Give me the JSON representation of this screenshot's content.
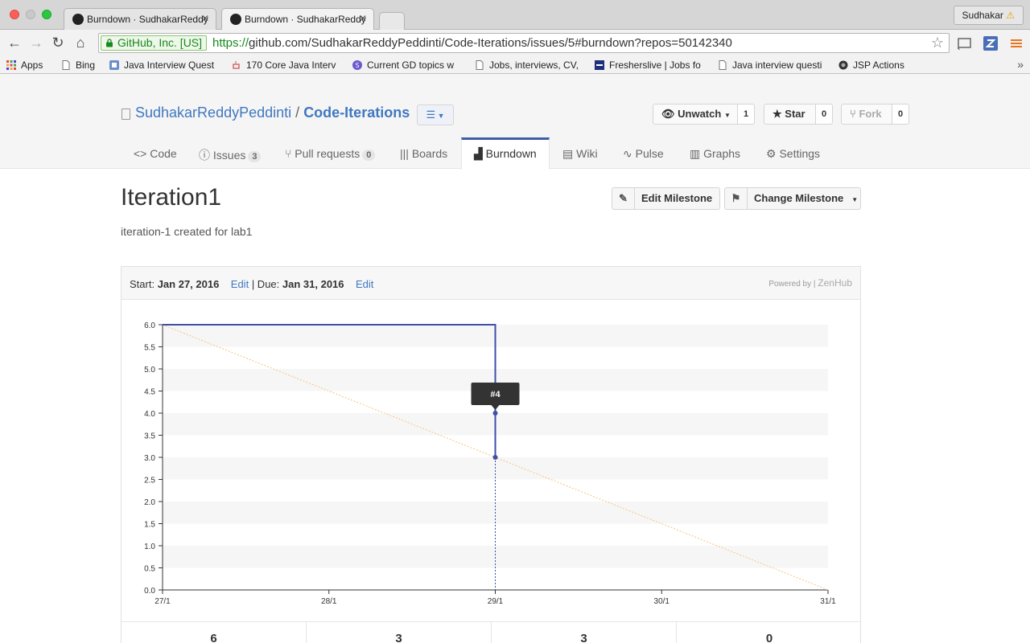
{
  "browser": {
    "tabs": [
      {
        "title": "Burndown · SudhakarReddy",
        "active": false
      },
      {
        "title": "Burndown · SudhakarReddy",
        "active": true
      }
    ],
    "profile": "Sudhakar",
    "secure_label": "GitHub, Inc. [US]",
    "url_scheme": "https://",
    "url_rest": "github.com/SudhakarReddyPeddinti/Code-Iterations/issues/5#burndown?repos=50142340"
  },
  "bookmarks": [
    {
      "label": "Apps",
      "icon": "apps-grid-icon"
    },
    {
      "label": "Bing",
      "icon": "page-icon"
    },
    {
      "label": "Java Interview Quest",
      "icon": "java-icon"
    },
    {
      "label": "170 Core Java Interv",
      "icon": "java-cup-icon"
    },
    {
      "label": "Current GD topics w",
      "icon": "gd-icon"
    },
    {
      "label": "Jobs, interviews, CV,",
      "icon": "page-icon"
    },
    {
      "label": "Fresherslive | Jobs fo",
      "icon": "fresherslive-icon"
    },
    {
      "label": "Java interview questi",
      "icon": "page-icon"
    },
    {
      "label": "JSP Actions",
      "icon": "jsp-icon"
    }
  ],
  "repo": {
    "owner": "SudhakarReddyPeddinti",
    "separator": "/",
    "name": "Code-Iterations",
    "watch_label": "Unwatch",
    "watch_count": "1",
    "star_label": "Star",
    "star_count": "0",
    "fork_label": "Fork",
    "fork_count": "0"
  },
  "reponav": {
    "code": "Code",
    "issues": "Issues",
    "issues_count": "3",
    "pulls": "Pull requests",
    "pulls_count": "0",
    "boards": "Boards",
    "burndown": "Burndown",
    "wiki": "Wiki",
    "pulse": "Pulse",
    "graphs": "Graphs",
    "settings": "Settings"
  },
  "milestone": {
    "title": "Iteration1",
    "description": "iteration-1 created for lab1",
    "edit_button": "Edit Milestone",
    "change_button": "Change Milestone",
    "start_label": "Start:",
    "start_date": "Jan 27, 2016",
    "edit_link": "Edit",
    "due_sep": "| Due:",
    "due_date": "Jan 31, 2016",
    "powered_by": "Powered by",
    "powered_brand": "ZenHub"
  },
  "chart_data": {
    "type": "line",
    "x_ticks": [
      "27/1",
      "28/1",
      "29/1",
      "30/1",
      "31/1"
    ],
    "y_ticks": [
      "0.0",
      "0.5",
      "1.0",
      "1.5",
      "2.0",
      "2.5",
      "3.0",
      "3.5",
      "4.0",
      "4.5",
      "5.0",
      "5.5",
      "6.0"
    ],
    "ylim": [
      0,
      6
    ],
    "series": [
      {
        "name": "",
        "color": "#3e4ea8",
        "points": [
          [
            "27/1",
            6
          ],
          [
            "28/1",
            6
          ],
          [
            "29/1",
            6
          ],
          [
            "29/1",
            4
          ],
          [
            "29/1",
            3
          ]
        ]
      },
      {
        "name": "",
        "color": "#f5c486",
        "style": "dotted",
        "points": [
          [
            "27/1",
            6
          ],
          [
            "31/1",
            0
          ]
        ]
      }
    ],
    "tooltip": {
      "label": "#4",
      "x": "29/1",
      "y": 4
    },
    "grid": "alternating horizontal bands"
  },
  "stats": [
    "6",
    "3",
    "3",
    "0"
  ]
}
